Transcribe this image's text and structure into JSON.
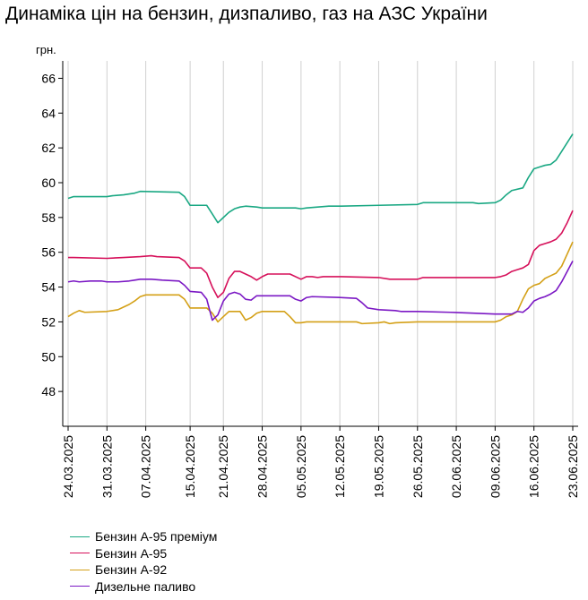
{
  "chart_data": {
    "type": "line",
    "title": "Динаміка цін на бензин, дизпаливо, газ на АЗС України",
    "ylabel": "грн.",
    "xlabel": "",
    "ylim": [
      46,
      67
    ],
    "yticks": [
      48,
      50,
      52,
      54,
      56,
      58,
      60,
      62,
      64,
      66
    ],
    "xlim": [
      "2025-03-24",
      "2025-06-23"
    ],
    "xticks": [
      "24.03.2025",
      "31.03.2025",
      "07.04.2025",
      "15.04.2025",
      "21.04.2025",
      "28.04.2025",
      "05.05.2025",
      "12.05.2025",
      "19.05.2025",
      "26.05.2025",
      "02.06.2025",
      "09.06.2025",
      "16.06.2025",
      "23.06.2025"
    ],
    "grid": "vertical",
    "legend_position": "bottom-left",
    "series": [
      {
        "name": "Бензин А-95 преміум",
        "color": "#1aa883",
        "points": [
          [
            "2025-03-24",
            59.1
          ],
          [
            "2025-03-25",
            59.2
          ],
          [
            "2025-03-31",
            59.2
          ],
          [
            "2025-04-01",
            59.25
          ],
          [
            "2025-04-03",
            59.3
          ],
          [
            "2025-04-05",
            59.4
          ],
          [
            "2025-04-06",
            59.5
          ],
          [
            "2025-04-13",
            59.45
          ],
          [
            "2025-04-14",
            59.2
          ],
          [
            "2025-04-15",
            58.7
          ],
          [
            "2025-04-18",
            58.7
          ],
          [
            "2025-04-19",
            58.2
          ],
          [
            "2025-04-20",
            57.7
          ],
          [
            "2025-04-21",
            58.0
          ],
          [
            "2025-04-22",
            58.3
          ],
          [
            "2025-04-23",
            58.5
          ],
          [
            "2025-04-24",
            58.6
          ],
          [
            "2025-04-25",
            58.65
          ],
          [
            "2025-04-27",
            58.6
          ],
          [
            "2025-04-28",
            58.55
          ],
          [
            "2025-05-04",
            58.55
          ],
          [
            "2025-05-05",
            58.5
          ],
          [
            "2025-05-06",
            58.55
          ],
          [
            "2025-05-10",
            58.65
          ],
          [
            "2025-05-12",
            58.65
          ],
          [
            "2025-05-19",
            58.7
          ],
          [
            "2025-05-26",
            58.75
          ],
          [
            "2025-05-27",
            58.85
          ],
          [
            "2025-06-05",
            58.85
          ],
          [
            "2025-06-06",
            58.8
          ],
          [
            "2025-06-09",
            58.85
          ],
          [
            "2025-06-10",
            59.0
          ],
          [
            "2025-06-11",
            59.3
          ],
          [
            "2025-06-12",
            59.55
          ],
          [
            "2025-06-14",
            59.7
          ],
          [
            "2025-06-15",
            60.3
          ],
          [
            "2025-06-16",
            60.8
          ],
          [
            "2025-06-17",
            60.9
          ],
          [
            "2025-06-18",
            61.0
          ],
          [
            "2025-06-19",
            61.05
          ],
          [
            "2025-06-20",
            61.3
          ],
          [
            "2025-06-21",
            61.8
          ],
          [
            "2025-06-22",
            62.3
          ],
          [
            "2025-06-23",
            62.8
          ]
        ]
      },
      {
        "name": "Бензин А-95",
        "color": "#d6105a",
        "points": [
          [
            "2025-03-24",
            55.7
          ],
          [
            "2025-03-25",
            55.7
          ],
          [
            "2025-03-31",
            55.65
          ],
          [
            "2025-04-03",
            55.7
          ],
          [
            "2025-04-06",
            55.75
          ],
          [
            "2025-04-08",
            55.8
          ],
          [
            "2025-04-09",
            55.75
          ],
          [
            "2025-04-13",
            55.7
          ],
          [
            "2025-04-14",
            55.5
          ],
          [
            "2025-04-15",
            55.1
          ],
          [
            "2025-04-17",
            55.1
          ],
          [
            "2025-04-18",
            54.8
          ],
          [
            "2025-04-19",
            54.0
          ],
          [
            "2025-04-20",
            53.4
          ],
          [
            "2025-04-21",
            53.7
          ],
          [
            "2025-04-22",
            54.5
          ],
          [
            "2025-04-23",
            54.9
          ],
          [
            "2025-04-24",
            54.9
          ],
          [
            "2025-04-26",
            54.6
          ],
          [
            "2025-04-27",
            54.4
          ],
          [
            "2025-04-28",
            54.6
          ],
          [
            "2025-04-29",
            54.75
          ],
          [
            "2025-05-03",
            54.75
          ],
          [
            "2025-05-05",
            54.45
          ],
          [
            "2025-05-06",
            54.6
          ],
          [
            "2025-05-07",
            54.6
          ],
          [
            "2025-05-08",
            54.55
          ],
          [
            "2025-05-09",
            54.6
          ],
          [
            "2025-05-12",
            54.6
          ],
          [
            "2025-05-19",
            54.55
          ],
          [
            "2025-05-21",
            54.45
          ],
          [
            "2025-05-26",
            54.45
          ],
          [
            "2025-05-27",
            54.55
          ],
          [
            "2025-06-09",
            54.55
          ],
          [
            "2025-06-10",
            54.6
          ],
          [
            "2025-06-11",
            54.7
          ],
          [
            "2025-06-12",
            54.9
          ],
          [
            "2025-06-13",
            55.0
          ],
          [
            "2025-06-14",
            55.1
          ],
          [
            "2025-06-15",
            55.3
          ],
          [
            "2025-06-16",
            56.1
          ],
          [
            "2025-06-17",
            56.4
          ],
          [
            "2025-06-18",
            56.5
          ],
          [
            "2025-06-19",
            56.6
          ],
          [
            "2025-06-20",
            56.75
          ],
          [
            "2025-06-21",
            57.1
          ],
          [
            "2025-06-22",
            57.7
          ],
          [
            "2025-06-23",
            58.4
          ]
        ]
      },
      {
        "name": "Бензин А-92",
        "color": "#d4a017",
        "points": [
          [
            "2025-03-24",
            52.3
          ],
          [
            "2025-03-25",
            52.5
          ],
          [
            "2025-03-26",
            52.65
          ],
          [
            "2025-03-27",
            52.55
          ],
          [
            "2025-03-31",
            52.6
          ],
          [
            "2025-04-02",
            52.7
          ],
          [
            "2025-04-03",
            52.85
          ],
          [
            "2025-04-04",
            53.0
          ],
          [
            "2025-04-05",
            53.2
          ],
          [
            "2025-04-06",
            53.45
          ],
          [
            "2025-04-07",
            53.55
          ],
          [
            "2025-04-13",
            53.55
          ],
          [
            "2025-04-14",
            53.3
          ],
          [
            "2025-04-15",
            52.8
          ],
          [
            "2025-04-18",
            52.8
          ],
          [
            "2025-04-19",
            52.5
          ],
          [
            "2025-04-20",
            52.0
          ],
          [
            "2025-04-21",
            52.3
          ],
          [
            "2025-04-22",
            52.6
          ],
          [
            "2025-04-24",
            52.6
          ],
          [
            "2025-04-25",
            52.1
          ],
          [
            "2025-04-26",
            52.25
          ],
          [
            "2025-04-27",
            52.5
          ],
          [
            "2025-04-28",
            52.6
          ],
          [
            "2025-05-02",
            52.6
          ],
          [
            "2025-05-03",
            52.3
          ],
          [
            "2025-05-04",
            51.95
          ],
          [
            "2025-05-05",
            51.95
          ],
          [
            "2025-05-06",
            52.0
          ],
          [
            "2025-05-12",
            52.0
          ],
          [
            "2025-05-15",
            52.0
          ],
          [
            "2025-05-16",
            51.9
          ],
          [
            "2025-05-19",
            51.95
          ],
          [
            "2025-05-20",
            52.0
          ],
          [
            "2025-05-21",
            51.9
          ],
          [
            "2025-05-22",
            51.95
          ],
          [
            "2025-05-26",
            52.0
          ],
          [
            "2025-06-02",
            52.0
          ],
          [
            "2025-06-09",
            52.0
          ],
          [
            "2025-06-10",
            52.1
          ],
          [
            "2025-06-11",
            52.3
          ],
          [
            "2025-06-12",
            52.4
          ],
          [
            "2025-06-13",
            52.6
          ],
          [
            "2025-06-14",
            53.3
          ],
          [
            "2025-06-15",
            53.9
          ],
          [
            "2025-06-16",
            54.1
          ],
          [
            "2025-06-17",
            54.2
          ],
          [
            "2025-06-18",
            54.5
          ],
          [
            "2025-06-19",
            54.65
          ],
          [
            "2025-06-20",
            54.8
          ],
          [
            "2025-06-21",
            55.2
          ],
          [
            "2025-06-22",
            55.9
          ],
          [
            "2025-06-23",
            56.6
          ]
        ]
      },
      {
        "name": "Дизельне паливо",
        "color": "#7b18c4",
        "points": [
          [
            "2025-03-24",
            54.3
          ],
          [
            "2025-03-25",
            54.35
          ],
          [
            "2025-03-26",
            54.3
          ],
          [
            "2025-03-28",
            54.35
          ],
          [
            "2025-03-30",
            54.35
          ],
          [
            "2025-03-31",
            54.3
          ],
          [
            "2025-04-02",
            54.3
          ],
          [
            "2025-04-04",
            54.35
          ],
          [
            "2025-04-05",
            54.4
          ],
          [
            "2025-04-06",
            54.45
          ],
          [
            "2025-04-08",
            54.45
          ],
          [
            "2025-04-10",
            54.4
          ],
          [
            "2025-04-13",
            54.35
          ],
          [
            "2025-04-14",
            54.1
          ],
          [
            "2025-04-15",
            53.75
          ],
          [
            "2025-04-17",
            53.7
          ],
          [
            "2025-04-18",
            53.3
          ],
          [
            "2025-04-19",
            52.1
          ],
          [
            "2025-04-20",
            52.4
          ],
          [
            "2025-04-21",
            53.2
          ],
          [
            "2025-04-22",
            53.6
          ],
          [
            "2025-04-23",
            53.7
          ],
          [
            "2025-04-24",
            53.6
          ],
          [
            "2025-04-25",
            53.3
          ],
          [
            "2025-04-26",
            53.25
          ],
          [
            "2025-04-27",
            53.5
          ],
          [
            "2025-05-03",
            53.5
          ],
          [
            "2025-05-04",
            53.3
          ],
          [
            "2025-05-05",
            53.2
          ],
          [
            "2025-05-06",
            53.4
          ],
          [
            "2025-05-07",
            53.45
          ],
          [
            "2025-05-12",
            53.4
          ],
          [
            "2025-05-15",
            53.35
          ],
          [
            "2025-05-16",
            53.1
          ],
          [
            "2025-05-17",
            52.8
          ],
          [
            "2025-05-19",
            52.7
          ],
          [
            "2025-05-22",
            52.65
          ],
          [
            "2025-05-23",
            52.6
          ],
          [
            "2025-05-26",
            52.6
          ],
          [
            "2025-06-01",
            52.55
          ],
          [
            "2025-06-05",
            52.5
          ],
          [
            "2025-06-09",
            52.45
          ],
          [
            "2025-06-12",
            52.45
          ],
          [
            "2025-06-13",
            52.6
          ],
          [
            "2025-06-14",
            52.55
          ],
          [
            "2025-06-15",
            52.8
          ],
          [
            "2025-06-16",
            53.2
          ],
          [
            "2025-06-17",
            53.35
          ],
          [
            "2025-06-18",
            53.45
          ],
          [
            "2025-06-19",
            53.6
          ],
          [
            "2025-06-20",
            53.8
          ],
          [
            "2025-06-21",
            54.3
          ],
          [
            "2025-06-22",
            54.9
          ],
          [
            "2025-06-23",
            55.5
          ]
        ]
      }
    ]
  }
}
